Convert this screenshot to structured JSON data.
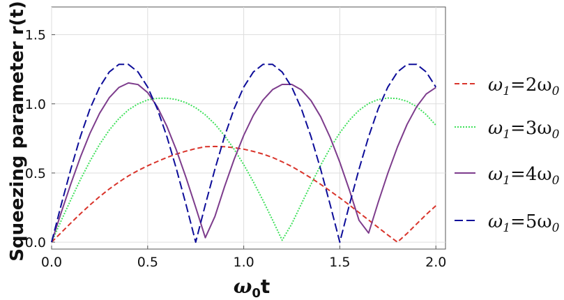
{
  "chart_data": {
    "type": "line",
    "xlabel_main": "ω",
    "xlabel_sub": "0",
    "xlabel_tail": "t",
    "ylabel": "Squeezing parameter r(t)",
    "xlim": [
      0,
      2.05
    ],
    "ylim": [
      -0.05,
      1.7
    ],
    "xticks": [
      0.0,
      0.5,
      1.0,
      1.5,
      2.0
    ],
    "xtick_labels": [
      "0.0",
      "0.5",
      "1.0",
      "1.5",
      "2.0"
    ],
    "yticks": [
      0.0,
      0.5,
      1.0,
      1.5
    ],
    "ytick_labels": [
      "0.0",
      "0.5",
      "1.0",
      "1.5"
    ],
    "grid": true,
    "legend_position": "right",
    "x": [
      0.0,
      0.05,
      0.1,
      0.15,
      0.2,
      0.25,
      0.3,
      0.35,
      0.4,
      0.45,
      0.5,
      0.55,
      0.6,
      0.65,
      0.7,
      0.75,
      0.8,
      0.85,
      0.9,
      0.95,
      1.0,
      1.05,
      1.1,
      1.15,
      1.2,
      1.25,
      1.3,
      1.35,
      1.4,
      1.45,
      1.5,
      1.55,
      1.6,
      1.65,
      1.7,
      1.75,
      1.8,
      1.85,
      1.9,
      1.95,
      2.0
    ],
    "series": [
      {
        "name": "ω1=2ω0",
        "label_main": "ω",
        "label_sub1": "1",
        "label_mid": "=2ω",
        "label_sub2": "0",
        "color": "#d9342b",
        "dash": "7,4",
        "values": [
          0.0,
          0.069,
          0.138,
          0.205,
          0.269,
          0.329,
          0.384,
          0.434,
          0.479,
          0.518,
          0.552,
          0.583,
          0.612,
          0.637,
          0.658,
          0.676,
          0.69,
          0.692,
          0.69,
          0.683,
          0.672,
          0.656,
          0.637,
          0.612,
          0.581,
          0.547,
          0.507,
          0.464,
          0.418,
          0.37,
          0.32,
          0.268,
          0.214,
          0.16,
          0.106,
          0.052,
          0.0,
          0.063,
          0.132,
          0.2,
          0.263
        ]
      },
      {
        "name": "ω1=3ω0",
        "label_main": "ω",
        "label_sub1": "1",
        "label_mid": "=3ω",
        "label_sub2": "0",
        "color": "#3ee05a",
        "dash": "2,2",
        "values": [
          0.0,
          0.156,
          0.307,
          0.452,
          0.586,
          0.707,
          0.81,
          0.893,
          0.956,
          1.0,
          1.028,
          1.04,
          1.041,
          1.031,
          1.008,
          0.972,
          0.92,
          0.853,
          0.77,
          0.672,
          0.56,
          0.436,
          0.302,
          0.16,
          0.014,
          0.132,
          0.277,
          0.419,
          0.555,
          0.68,
          0.79,
          0.882,
          0.953,
          1.003,
          1.031,
          1.042,
          1.038,
          1.018,
          0.98,
          0.922,
          0.845
        ]
      },
      {
        "name": "ω1=4ω0",
        "label_main": "ω",
        "label_sub1": "1",
        "label_mid": "=4ω",
        "label_sub2": "0",
        "color": "#7d3c8c",
        "dash": "none",
        "values": [
          0.0,
          0.214,
          0.421,
          0.614,
          0.787,
          0.932,
          1.044,
          1.118,
          1.151,
          1.139,
          1.081,
          0.979,
          0.837,
          0.664,
          0.466,
          0.252,
          0.032,
          0.186,
          0.4,
          0.598,
          0.772,
          0.917,
          1.027,
          1.103,
          1.14,
          1.14,
          1.101,
          1.023,
          0.907,
          0.757,
          0.578,
          0.376,
          0.158,
          0.066,
          0.288,
          0.498,
          0.688,
          0.851,
          0.98,
          1.071,
          1.118
        ]
      },
      {
        "name": "ω1=5ω0",
        "label_main": "ω",
        "label_sub1": "1",
        "label_mid": "=5ω",
        "label_sub2": "0",
        "color": "#0d0d99",
        "dash": "12,5",
        "values": [
          0.0,
          0.27,
          0.528,
          0.763,
          0.964,
          1.121,
          1.23,
          1.285,
          1.285,
          1.23,
          1.121,
          0.964,
          0.763,
          0.528,
          0.27,
          0.0,
          0.27,
          0.528,
          0.763,
          0.964,
          1.121,
          1.23,
          1.285,
          1.285,
          1.23,
          1.121,
          0.964,
          0.763,
          0.528,
          0.27,
          0.0,
          0.27,
          0.528,
          0.763,
          0.964,
          1.121,
          1.23,
          1.285,
          1.285,
          1.23,
          1.121
        ]
      }
    ]
  }
}
